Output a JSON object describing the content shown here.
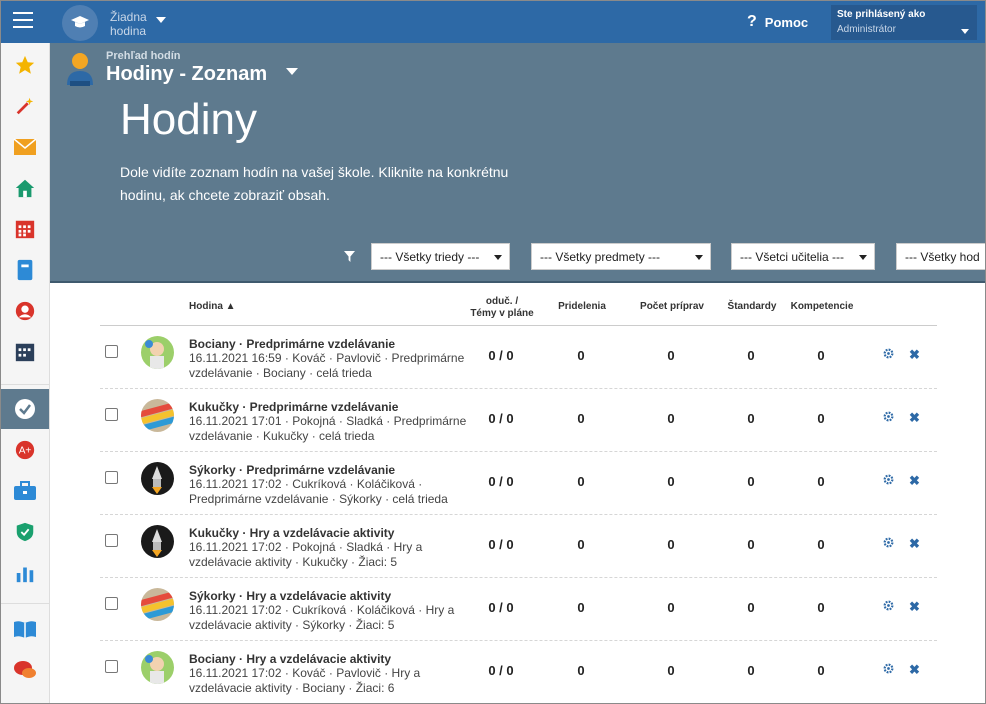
{
  "app": {
    "school_name_line1": "Žiadna",
    "school_name_line2": "hodina",
    "help_label": "Pomoc",
    "user_line1": "Ste prihlásený ako",
    "user_line2": "Administrátor"
  },
  "sidebar": {
    "items": [
      {
        "icon": "star-icon"
      },
      {
        "icon": "magic-wand-icon"
      },
      {
        "icon": "envelope-icon"
      },
      {
        "icon": "home-icon"
      },
      {
        "icon": "calendar-grid-icon"
      },
      {
        "icon": "book-icon"
      },
      {
        "icon": "person-icon"
      },
      {
        "icon": "schedule-icon"
      },
      {
        "icon": "check-circle-icon"
      },
      {
        "icon": "alert-bubble-icon"
      },
      {
        "icon": "briefcase-icon"
      },
      {
        "icon": "shield-check-icon"
      },
      {
        "icon": "bar-chart-icon"
      },
      {
        "icon": "open-book-icon"
      },
      {
        "icon": "chat-icon"
      }
    ]
  },
  "header": {
    "breadcrumb": "Prehľad hodín",
    "subtitle": "Hodiny - Zoznam",
    "title": "Hodiny",
    "description": "Dole vidíte zoznam hodín na vašej škole. Kliknite na konkrétnu hodinu, ak chcete zobraziť obsah."
  },
  "filters": {
    "class": "--- Všetky triedy ---",
    "subject": "--- Všetky predmety ---",
    "teacher": "--- Všetci učitelia ---",
    "other": "--- Všetky hod"
  },
  "table": {
    "columns": {
      "hodina": "Hodina ▲",
      "oduc_line1": "oduč. /",
      "oduc_line2": "Témy v pláne",
      "pridelenia": "Pridelenia",
      "pocet": "Počet príprav",
      "standardy": "Štandardy",
      "kompetencie": "Kompetencie"
    },
    "rows": [
      {
        "title": "Bociany · Predprimárne vzdelávanie",
        "details": "16.11.2021 16:59 · Kováč · Pavlovič · Predprimárne vzdelávanie · Bociany · celá trieda",
        "oduc": "0 / 0",
        "pridelenia": "0",
        "pocet": "0",
        "standardy": "0",
        "kompetencie": "0",
        "avatar": "baby"
      },
      {
        "title": "Kukučky · Predprimárne vzdelávanie",
        "details": "16.11.2021 17:01 · Pokojná · Sladká · Predprimárne vzdelávanie · Kukučky · celá trieda",
        "oduc": "0 / 0",
        "pridelenia": "0",
        "pocet": "0",
        "standardy": "0",
        "kompetencie": "0",
        "avatar": "blocks"
      },
      {
        "title": "Sýkorky · Predprimárne vzdelávanie",
        "details": "16.11.2021 17:02 · Cukríková · Koláčiková · Predprimárne vzdelávanie · Sýkorky · celá trieda",
        "oduc": "0 / 0",
        "pridelenia": "0",
        "pocet": "0",
        "standardy": "0",
        "kompetencie": "0",
        "avatar": "rocket"
      },
      {
        "title": "Kukučky · Hry a vzdelávacie aktivity",
        "details": "16.11.2021 17:02 · Pokojná · Sladká · Hry a vzdelávacie aktivity · Kukučky · Žiaci: 5",
        "oduc": "0 / 0",
        "pridelenia": "0",
        "pocet": "0",
        "standardy": "0",
        "kompetencie": "0",
        "avatar": "rocket"
      },
      {
        "title": "Sýkorky · Hry a vzdelávacie aktivity",
        "details": "16.11.2021 17:02 · Cukríková · Koláčiková · Hry a vzdelávacie aktivity · Sýkorky · Žiaci: 5",
        "oduc": "0 / 0",
        "pridelenia": "0",
        "pocet": "0",
        "standardy": "0",
        "kompetencie": "0",
        "avatar": "blocks"
      },
      {
        "title": "Bociany · Hry a vzdelávacie aktivity",
        "details": "16.11.2021 17:02 · Kováč · Pavlovič · Hry a vzdelávacie aktivity · Bociany · Žiaci: 6",
        "oduc": "0 / 0",
        "pridelenia": "0",
        "pocet": "0",
        "standardy": "0",
        "kompetencie": "0",
        "avatar": "baby"
      }
    ]
  }
}
